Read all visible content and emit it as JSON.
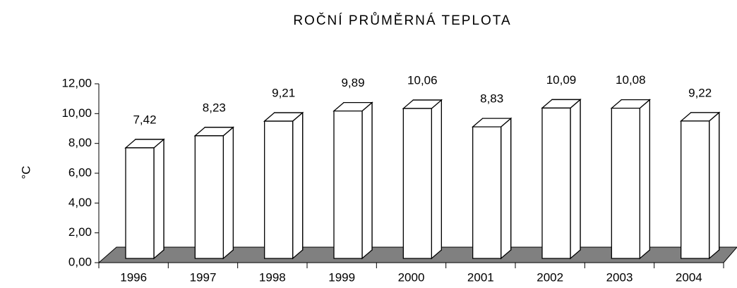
{
  "chart_data": {
    "type": "bar3d",
    "title": "ROČNÍ PRŮMĚRNÁ TEPLOTA",
    "y_label": "°C",
    "categories": [
      "1996",
      "1997",
      "1998",
      "1999",
      "2000",
      "2001",
      "2002",
      "2003",
      "2004"
    ],
    "values": [
      7.42,
      8.23,
      9.21,
      9.89,
      10.06,
      8.83,
      10.09,
      10.08,
      9.22
    ],
    "value_labels": [
      "7,42",
      "8,23",
      "9,21",
      "9,89",
      "10,06",
      "8,83",
      "10,09",
      "10,08",
      "9,22"
    ],
    "ylim": [
      0,
      12
    ],
    "yticks": [
      {
        "value": 0,
        "label": "0,00"
      },
      {
        "value": 2,
        "label": "2,00"
      },
      {
        "value": 4,
        "label": "4,00"
      },
      {
        "value": 6,
        "label": "6,00"
      },
      {
        "value": 8,
        "label": "8,00"
      },
      {
        "value": 10,
        "label": "10,00"
      },
      {
        "value": 12,
        "label": "12,00"
      }
    ],
    "color": "#ffffff",
    "floor_color": "#808080"
  }
}
